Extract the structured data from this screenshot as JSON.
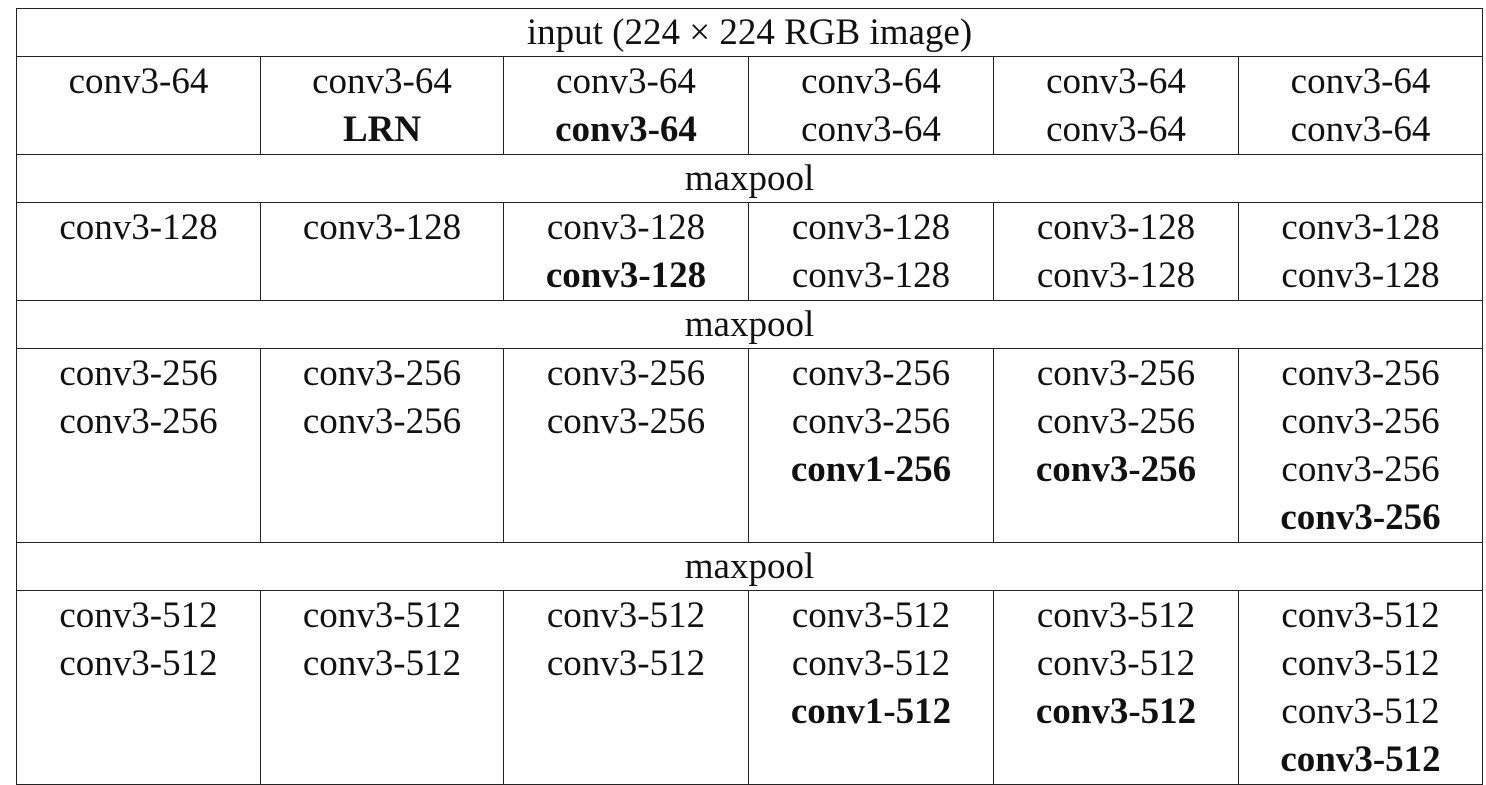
{
  "input_row": "input (224 × 224 RGB image)",
  "maxpool_label": "maxpool",
  "blocks": [
    {
      "columns": [
        [
          {
            "text": "conv3-64",
            "bold": false
          }
        ],
        [
          {
            "text": "conv3-64",
            "bold": false
          },
          {
            "text": "LRN",
            "bold": true
          }
        ],
        [
          {
            "text": "conv3-64",
            "bold": false
          },
          {
            "text": "conv3-64",
            "bold": true
          }
        ],
        [
          {
            "text": "conv3-64",
            "bold": false
          },
          {
            "text": "conv3-64",
            "bold": false
          }
        ],
        [
          {
            "text": "conv3-64",
            "bold": false
          },
          {
            "text": "conv3-64",
            "bold": false
          }
        ],
        [
          {
            "text": "conv3-64",
            "bold": false
          },
          {
            "text": "conv3-64",
            "bold": false
          }
        ]
      ]
    },
    {
      "columns": [
        [
          {
            "text": "conv3-128",
            "bold": false
          }
        ],
        [
          {
            "text": "conv3-128",
            "bold": false
          }
        ],
        [
          {
            "text": "conv3-128",
            "bold": false
          },
          {
            "text": "conv3-128",
            "bold": true
          }
        ],
        [
          {
            "text": "conv3-128",
            "bold": false
          },
          {
            "text": "conv3-128",
            "bold": false
          }
        ],
        [
          {
            "text": "conv3-128",
            "bold": false
          },
          {
            "text": "conv3-128",
            "bold": false
          }
        ],
        [
          {
            "text": "conv3-128",
            "bold": false
          },
          {
            "text": "conv3-128",
            "bold": false
          }
        ]
      ]
    },
    {
      "columns": [
        [
          {
            "text": "conv3-256",
            "bold": false
          },
          {
            "text": "conv3-256",
            "bold": false
          }
        ],
        [
          {
            "text": "conv3-256",
            "bold": false
          },
          {
            "text": "conv3-256",
            "bold": false
          }
        ],
        [
          {
            "text": "conv3-256",
            "bold": false
          },
          {
            "text": "conv3-256",
            "bold": false
          }
        ],
        [
          {
            "text": "conv3-256",
            "bold": false
          },
          {
            "text": "conv3-256",
            "bold": false
          },
          {
            "text": "conv1-256",
            "bold": true
          }
        ],
        [
          {
            "text": "conv3-256",
            "bold": false
          },
          {
            "text": "conv3-256",
            "bold": false
          },
          {
            "text": "conv3-256",
            "bold": true
          }
        ],
        [
          {
            "text": "conv3-256",
            "bold": false
          },
          {
            "text": "conv3-256",
            "bold": false
          },
          {
            "text": "conv3-256",
            "bold": false
          },
          {
            "text": "conv3-256",
            "bold": true
          }
        ]
      ]
    },
    {
      "columns": [
        [
          {
            "text": "conv3-512",
            "bold": false
          },
          {
            "text": "conv3-512",
            "bold": false
          }
        ],
        [
          {
            "text": "conv3-512",
            "bold": false
          },
          {
            "text": "conv3-512",
            "bold": false
          }
        ],
        [
          {
            "text": "conv3-512",
            "bold": false
          },
          {
            "text": "conv3-512",
            "bold": false
          }
        ],
        [
          {
            "text": "conv3-512",
            "bold": false
          },
          {
            "text": "conv3-512",
            "bold": false
          },
          {
            "text": "conv1-512",
            "bold": true
          }
        ],
        [
          {
            "text": "conv3-512",
            "bold": false
          },
          {
            "text": "conv3-512",
            "bold": false
          },
          {
            "text": "conv3-512",
            "bold": true
          }
        ],
        [
          {
            "text": "conv3-512",
            "bold": false
          },
          {
            "text": "conv3-512",
            "bold": false
          },
          {
            "text": "conv3-512",
            "bold": false
          },
          {
            "text": "conv3-512",
            "bold": true
          }
        ]
      ]
    }
  ]
}
